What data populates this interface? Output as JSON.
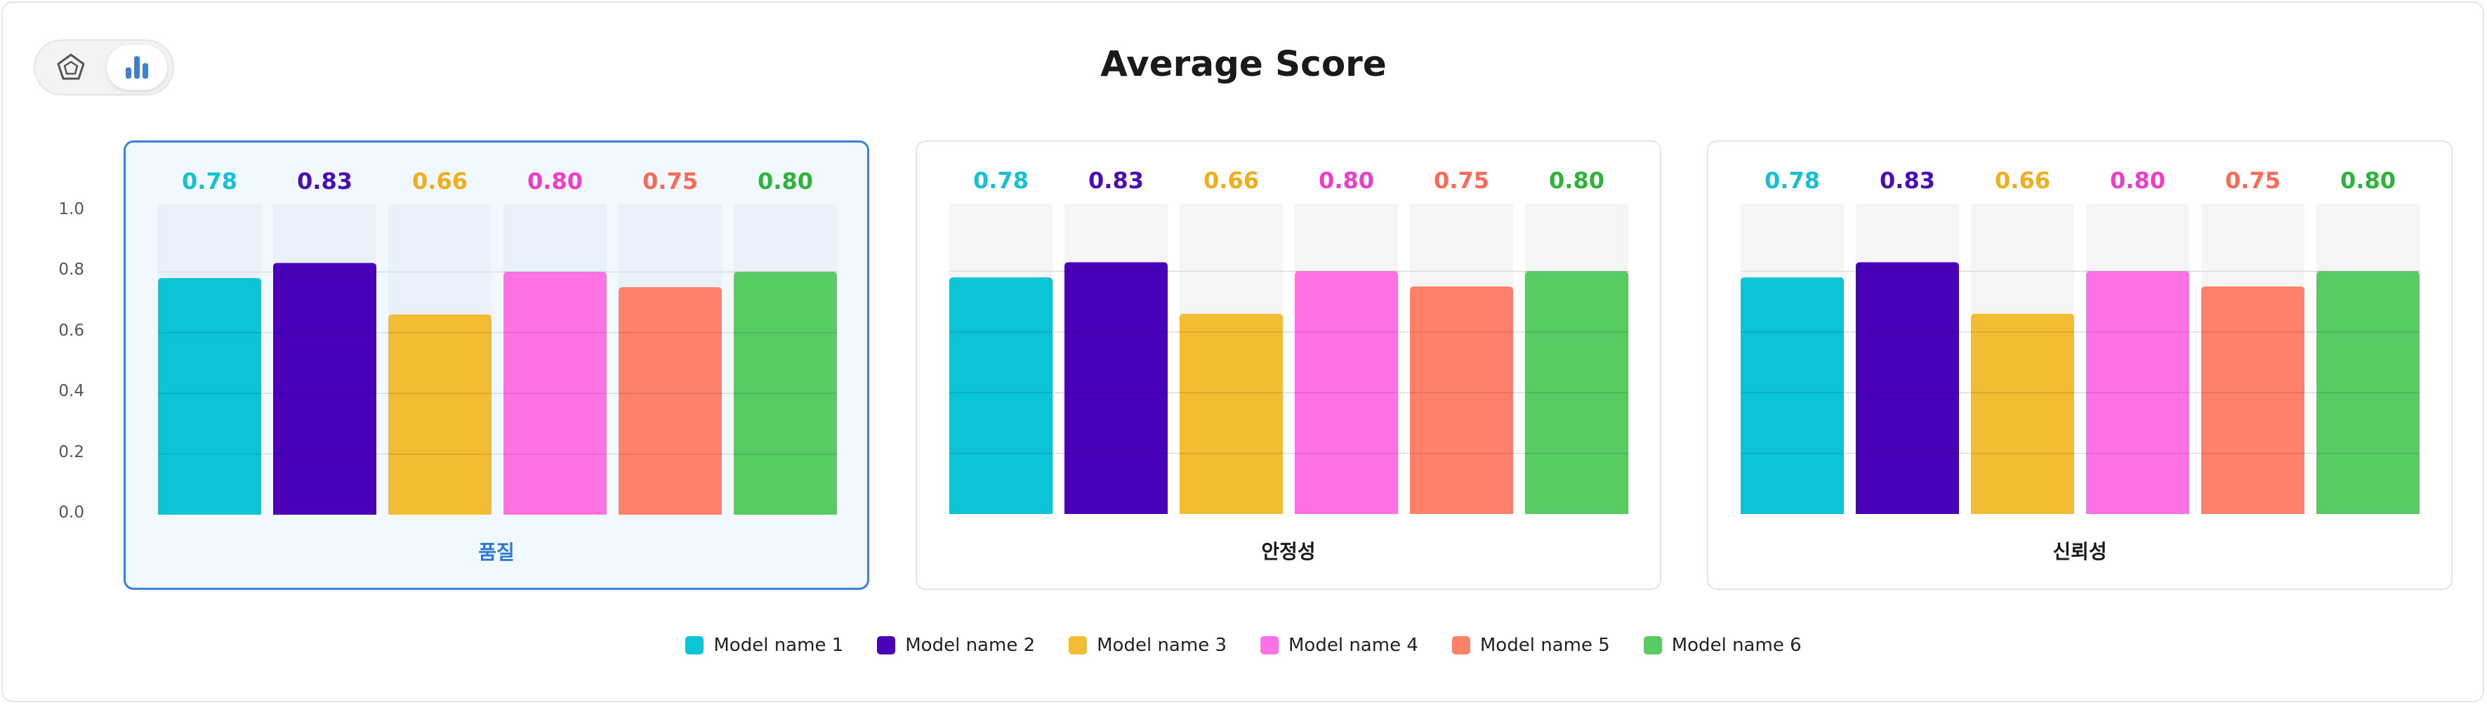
{
  "chart_data": {
    "type": "bar",
    "title": "Average Score",
    "ylim": [
      0,
      1.0
    ],
    "yticks": [
      "0.0",
      "0.2",
      "0.4",
      "0.6",
      "0.8",
      "1.0"
    ],
    "legend_position": "bottom-center",
    "series": [
      {
        "name": "Model name 1",
        "color": "#0bc5d6"
      },
      {
        "name": "Model name 2",
        "color": "#4a00b8"
      },
      {
        "name": "Model name 3",
        "color": "#f3bd33"
      },
      {
        "name": "Model name 4",
        "color": "#ff72e5"
      },
      {
        "name": "Model name 5",
        "color": "#ff806b"
      },
      {
        "name": "Model name 6",
        "color": "#57cc63"
      }
    ],
    "label_colors": [
      "#16c1d1",
      "#4a0fb3",
      "#f0ad1d",
      "#ef3dc8",
      "#fb6a57",
      "#2eb33c"
    ],
    "panels": [
      {
        "category": "품질",
        "values": [
          0.78,
          0.83,
          0.66,
          0.8,
          0.75,
          0.8
        ],
        "labels": [
          "0.78",
          "0.83",
          "0.66",
          "0.80",
          "0.75",
          "0.80"
        ],
        "active": true
      },
      {
        "category": "안정성",
        "values": [
          0.78,
          0.83,
          0.66,
          0.8,
          0.75,
          0.8
        ],
        "labels": [
          "0.78",
          "0.83",
          "0.66",
          "0.80",
          "0.75",
          "0.80"
        ],
        "active": false
      },
      {
        "category": "신뢰성",
        "values": [
          0.78,
          0.83,
          0.66,
          0.8,
          0.75,
          0.8
        ],
        "labels": [
          "0.78",
          "0.83",
          "0.66",
          "0.80",
          "0.75",
          "0.80"
        ],
        "active": false
      }
    ]
  },
  "toggle": {
    "options": [
      {
        "icon": "radar-chart-icon",
        "selected": false
      },
      {
        "icon": "bar-chart-icon",
        "selected": true
      }
    ],
    "accent": "#3b82d6"
  }
}
